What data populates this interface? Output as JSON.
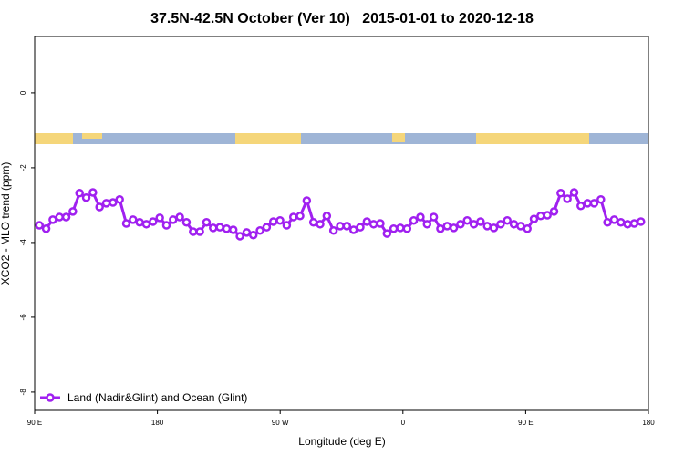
{
  "chart_data": {
    "type": "line",
    "title": "37.5N-42.5N October (Ver 10)   2015-01-01 to 2020-12-18",
    "x_label": "Longitude (deg E)",
    "y_label": "XCO2 - MLO trend (ppm)",
    "xlim": [
      90,
      540
    ],
    "ylim": [
      -8.49,
      1.51
    ],
    "xticks": [
      {
        "value": 90,
        "label": "90 E"
      },
      180,
      {
        "value": 270,
        "label": "90 W"
      },
      {
        "value": 360,
        "label": "0"
      },
      {
        "value": 450,
        "label": "90 E"
      },
      {
        "value": 540,
        "label": "180"
      }
    ],
    "yticks": [
      0,
      -2,
      -4,
      -6,
      -8
    ],
    "legend": "bottom-left",
    "x": [
      93.5,
      98.4,
      103.3,
      108.2,
      113.1,
      118,
      122.9,
      127.8,
      132.7,
      137.6,
      142.5,
      147.4,
      152.3,
      157.2,
      162.1,
      167,
      171.9,
      176.8,
      181.7,
      186.6,
      191.5,
      196.4,
      201.3,
      206.2,
      211.1,
      216,
      220.9,
      225.8,
      230.7,
      235.6,
      240.5,
      245.4,
      250.3,
      255.2,
      260.1,
      265,
      269.9,
      274.8,
      279.7,
      284.6,
      289.5,
      294.4,
      299.3,
      304.2,
      309.1,
      314,
      318.9,
      323.8,
      328.7,
      333.6,
      338.5,
      343.4,
      348.3,
      353.2,
      358.1,
      363,
      367.9,
      372.8,
      377.7,
      382.6,
      387.5,
      392.4,
      397.3,
      402.2,
      407.1,
      412,
      416.9,
      421.8,
      426.7,
      431.6,
      436.5,
      441.4,
      446.3,
      451.2,
      456.1,
      461,
      465.9,
      470.8,
      475.7,
      480.6,
      485.5,
      490.4,
      495.3,
      500.2,
      505.1,
      510,
      514.9,
      519.8,
      524.7,
      529.6,
      534.5
    ],
    "series": [
      {
        "name": "Land (Nadir&Glint) and Ocean (Glint)",
        "color": "#a020f0",
        "values": [
          -3.54,
          -3.63,
          -3.39,
          -3.32,
          -3.32,
          -3.17,
          -2.68,
          -2.8,
          -2.66,
          -3.05,
          -2.95,
          -2.93,
          -2.85,
          -3.49,
          -3.39,
          -3.46,
          -3.51,
          -3.44,
          -3.34,
          -3.54,
          -3.39,
          -3.32,
          -3.46,
          -3.71,
          -3.71,
          -3.46,
          -3.61,
          -3.59,
          -3.63,
          -3.66,
          -3.83,
          -3.73,
          -3.8,
          -3.68,
          -3.59,
          -3.44,
          -3.41,
          -3.54,
          -3.32,
          -3.29,
          -2.88,
          -3.46,
          -3.51,
          -3.29,
          -3.68,
          -3.56,
          -3.56,
          -3.66,
          -3.59,
          -3.44,
          -3.51,
          -3.49,
          -3.76,
          -3.63,
          -3.61,
          -3.63,
          -3.41,
          -3.32,
          -3.51,
          -3.32,
          -3.63,
          -3.56,
          -3.61,
          -3.51,
          -3.41,
          -3.51,
          -3.44,
          -3.56,
          -3.61,
          -3.51,
          -3.41,
          -3.51,
          -3.56,
          -3.63,
          -3.37,
          -3.29,
          -3.27,
          -3.17,
          -2.68,
          -2.83,
          -2.66,
          -3.02,
          -2.95,
          -2.95,
          -2.85,
          -3.46,
          -3.39,
          -3.46,
          -3.51,
          -3.49,
          -3.44
        ]
      }
    ]
  }
}
